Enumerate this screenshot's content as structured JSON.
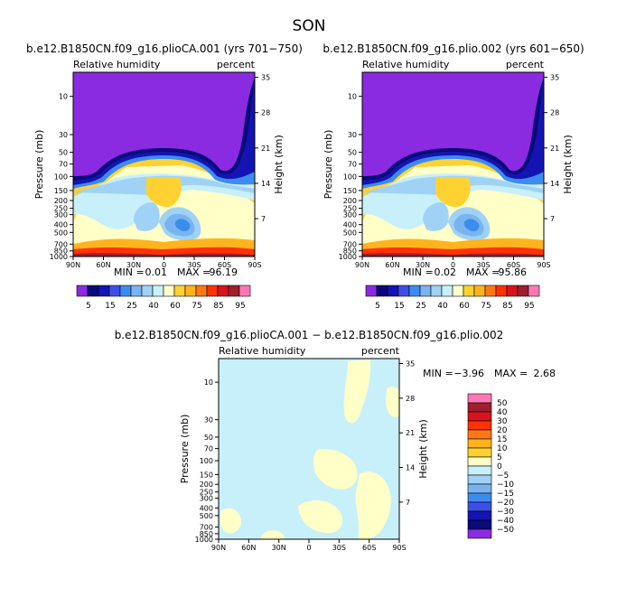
{
  "figure": {
    "season_title": "SON",
    "colors": {
      "purple": "#8a2be2",
      "dark_navy": "#0a0a78",
      "navy": "#1414b4",
      "blue": "#3c50e6",
      "mid_blue": "#3c8cf0",
      "light_blue": "#78b4f0",
      "pale_blue": "#a0d2f5",
      "ice_blue": "#c8f0fa",
      "pale_yellow": "#ffffc8",
      "gold": "#ffd232",
      "orange_yellow": "#ffb41e",
      "orange": "#ff7814",
      "red_orange": "#ff3200",
      "red": "#d7141e",
      "dark_red": "#a01e2d",
      "pink": "#ff78b4"
    }
  },
  "chart_data": [
    {
      "type": "heatmap",
      "title": "b.e12.B1850CN.f09_g16.plioCA.001 (yrs 701−750)",
      "left_label": "Relative humidity",
      "right_label": "percent",
      "ylabel": "Pressure (mb)",
      "ylabel_right": "Height (km)",
      "x_ticks": [
        "90N",
        "60N",
        "30N",
        "0",
        "30S",
        "60S",
        "90S"
      ],
      "y_ticks": [
        "10",
        "30",
        "50",
        "70",
        "100",
        "150",
        "200",
        "250",
        "300",
        "400",
        "500",
        "700",
        "850",
        "1000"
      ],
      "y_ticks_right": [
        "35",
        "28",
        "21",
        "14",
        "7"
      ],
      "min_text": "MIN =",
      "min_value": "0.01",
      "max_text": "MAX =",
      "max_value": "96.19",
      "colorbar_labels": [
        "5",
        "15",
        "25",
        "40",
        "60",
        "75",
        "85",
        "95"
      ],
      "contour_levels": [
        5,
        10,
        15,
        20,
        25,
        30,
        40,
        50,
        60,
        70,
        75,
        80,
        85,
        90,
        95
      ]
    },
    {
      "type": "heatmap",
      "title": "b.e12.B1850CN.f09_g16.plio.002 (yrs 601−650)",
      "left_label": "Relative humidity",
      "right_label": "percent",
      "ylabel": "Pressure (mb)",
      "ylabel_right": "Height (km)",
      "x_ticks": [
        "90N",
        "60N",
        "30N",
        "0",
        "30S",
        "60S",
        "90S"
      ],
      "y_ticks": [
        "10",
        "30",
        "50",
        "70",
        "100",
        "150",
        "200",
        "250",
        "300",
        "400",
        "500",
        "700",
        "850",
        "1000"
      ],
      "y_ticks_right": [
        "35",
        "28",
        "21",
        "14",
        "7"
      ],
      "min_text": "MIN =",
      "min_value": "0.02",
      "max_text": "MAX =",
      "max_value": "95.86",
      "colorbar_labels": [
        "5",
        "15",
        "25",
        "40",
        "60",
        "75",
        "85",
        "95"
      ],
      "contour_levels": [
        5,
        10,
        15,
        20,
        25,
        30,
        40,
        50,
        60,
        70,
        75,
        80,
        85,
        90,
        95
      ]
    },
    {
      "type": "heatmap",
      "title": "b.e12.B1850CN.f09_g16.plioCA.001 − b.e12.B1850CN.f09_g16.plio.002",
      "left_label": "Relative humidity",
      "right_label": "percent",
      "ylabel": "Pressure (mb)",
      "ylabel_right": "Height (km)",
      "x_ticks": [
        "90N",
        "60N",
        "30N",
        "0",
        "30S",
        "60S",
        "90S"
      ],
      "y_ticks": [
        "10",
        "30",
        "50",
        "70",
        "100",
        "150",
        "200",
        "250",
        "300",
        "400",
        "500",
        "700",
        "850",
        "1000"
      ],
      "y_ticks_right": [
        "35",
        "28",
        "21",
        "14",
        "7"
      ],
      "min_text": "MIN =",
      "min_value": "−3.96",
      "max_text": "MAX =",
      "max_value": "2.68",
      "colorbar_labels": [
        "50",
        "40",
        "30",
        "20",
        "15",
        "10",
        "5",
        "0",
        "−5",
        "−10",
        "−15",
        "−20",
        "−30",
        "−40",
        "−50"
      ],
      "contour_levels": [
        -50,
        -40,
        -30,
        -20,
        -15,
        -10,
        -5,
        0,
        5,
        10,
        15,
        20,
        30,
        40,
        50
      ]
    }
  ]
}
